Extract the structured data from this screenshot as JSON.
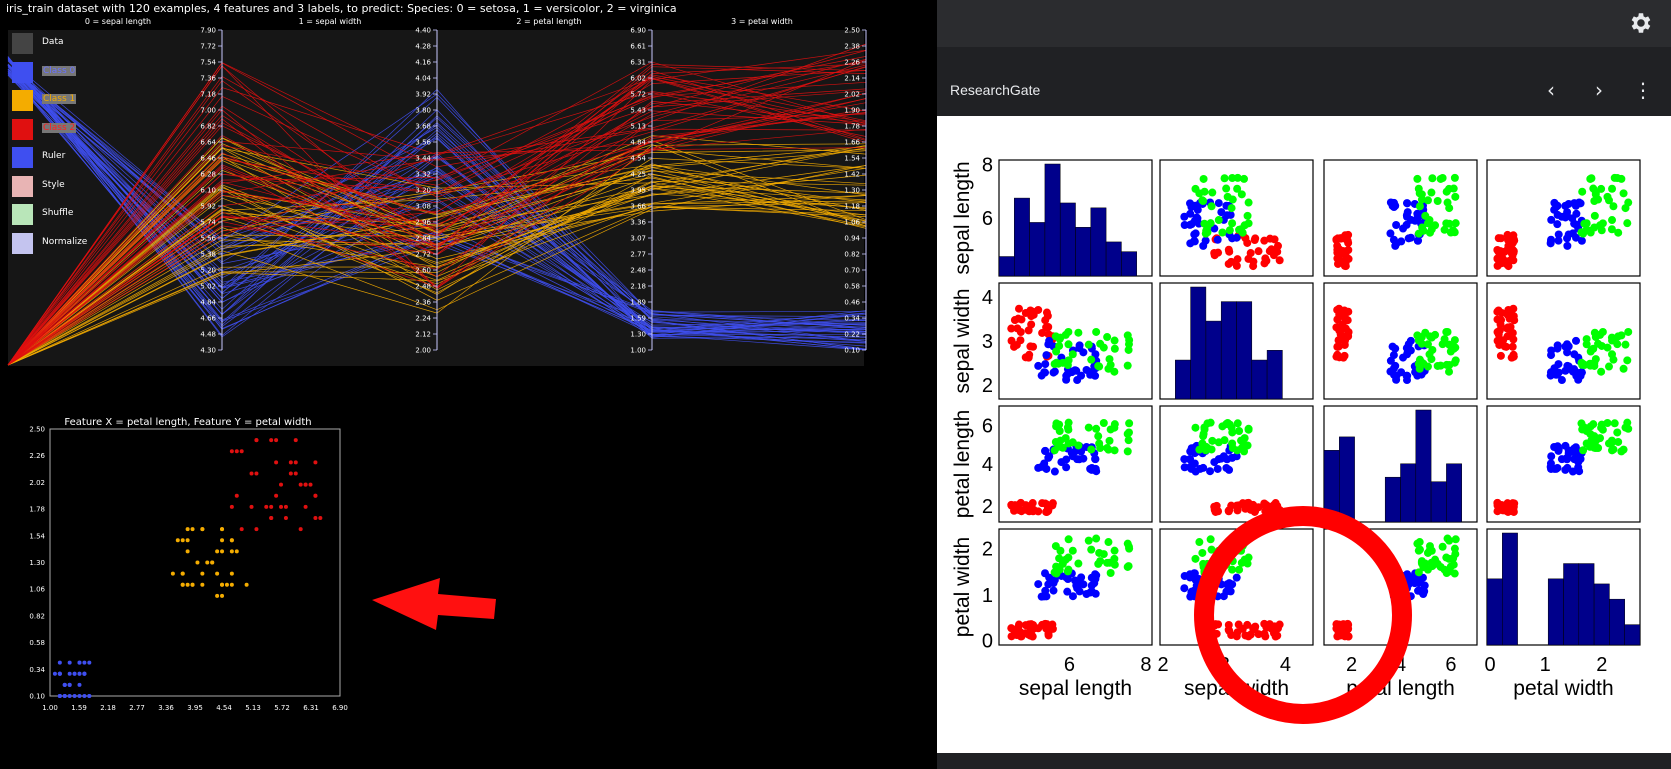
{
  "left": {
    "title": "iris_train dataset with 120 examples, 4 features and 3 labels, to predict: Species: 0 = setosa, 1 = versicolor, 2 = virginica",
    "axes": [
      {
        "name": "0 = sepal length",
        "ticks": [
          "7.90",
          "7.72",
          "7.54",
          "7.36",
          "7.18",
          "7.00",
          "6.82",
          "6.64",
          "6.46",
          "6.28",
          "6.10",
          "5.92",
          "5.74",
          "5.56",
          "5.38",
          "5.20",
          "5.02",
          "4.84",
          "4.66",
          "4.48",
          "4.30"
        ]
      },
      {
        "name": "1 =  sepal width",
        "ticks": [
          "4.40",
          "4.28",
          "4.16",
          "4.04",
          "3.92",
          "3.80",
          "3.68",
          "3.56",
          "3.44",
          "3.32",
          "3.20",
          "3.08",
          "2.96",
          "2.84",
          "2.72",
          "2.60",
          "2.48",
          "2.36",
          "2.24",
          "2.12",
          "2.00"
        ]
      },
      {
        "name": "2 =  petal length",
        "ticks": [
          "6.90",
          "6.61",
          "6.31",
          "6.02",
          "5.72",
          "5.43",
          "5.13",
          "4.84",
          "4.54",
          "4.25",
          "3.95",
          "3.66",
          "3.36",
          "3.07",
          "2.77",
          "2.48",
          "2.18",
          "1.89",
          "1.59",
          "1.30",
          "1.00"
        ]
      },
      {
        "name": "3 =  petal width",
        "ticks": [
          "2.50",
          "2.38",
          "2.26",
          "2.14",
          "2.02",
          "1.90",
          "1.78",
          "1.66",
          "1.54",
          "1.42",
          "1.30",
          "1.18",
          "1.06",
          "0.94",
          "0.82",
          "0.70",
          "0.58",
          "0.46",
          "0.34",
          "0.22",
          "0.10"
        ]
      }
    ],
    "legend": [
      {
        "label": "Data",
        "color": "#444444",
        "text_color": "#ffffff"
      },
      {
        "label": "Class 0",
        "color": "#3f4ff0",
        "text_color": "#6a74ff"
      },
      {
        "label": "Class 1",
        "color": "#f4ac00",
        "text_color": "#f4ac00"
      },
      {
        "label": "Class 2",
        "color": "#e01010",
        "text_color": "#ff2020"
      },
      {
        "label": "Ruler",
        "color": "#3f4ff0",
        "text_color": "#ffffff"
      },
      {
        "label": "Style",
        "color": "#e8b4b4",
        "text_color": "#ffffff"
      },
      {
        "label": "Shuffle",
        "color": "#b9e6b9",
        "text_color": "#ffffff"
      },
      {
        "label": "Normalize",
        "color": "#c4c4ef",
        "text_color": "#ffffff"
      }
    ],
    "scatter": {
      "title": "Feature X = petal length, Feature Y = petal width",
      "xticks": [
        "1.00",
        "1.59",
        "2.18",
        "2.77",
        "3.36",
        "3.95",
        "4.54",
        "5.13",
        "5.72",
        "6.31",
        "6.90"
      ],
      "yticks": [
        "2.50",
        "2.26",
        "2.02",
        "1.78",
        "1.54",
        "1.30",
        "1.06",
        "0.82",
        "0.58",
        "0.34",
        "0.10"
      ],
      "xlim": [
        1.0,
        6.9
      ],
      "ylim": [
        0.1,
        2.5
      ]
    },
    "colors": {
      "class0": "#3f4ff0",
      "class1": "#f4ac00",
      "class2": "#e01010",
      "arrow": "#ff1010"
    }
  },
  "right": {
    "site": "ResearchGate",
    "icons": {
      "settings": "gear-icon",
      "back": "chevron-left-icon",
      "forward": "chevron-right-icon",
      "more": "more-vertical-icon"
    },
    "labels": [
      "sepal length",
      "sepal width",
      "petal length",
      "petal width"
    ],
    "yticks": {
      "sepal_length": [
        "8",
        "6"
      ],
      "sepal_width": [
        "4",
        "3",
        "2"
      ],
      "petal_length": [
        "6",
        "4",
        "2"
      ],
      "petal_width": [
        "2",
        "1",
        "0"
      ]
    },
    "xticks": {
      "sepal_length": [
        "6",
        "8"
      ],
      "sepal_width": [
        "2",
        "3",
        "4"
      ],
      "petal_length": [
        "2",
        "4",
        "6"
      ],
      "petal_width": [
        "0",
        "1",
        "2"
      ]
    },
    "colors": {
      "setosa": "#ff0000",
      "versicolor": "#0000ff",
      "virginica": "#00ff00",
      "histogram": "#00008b",
      "highlight": "#ff0000"
    }
  }
}
